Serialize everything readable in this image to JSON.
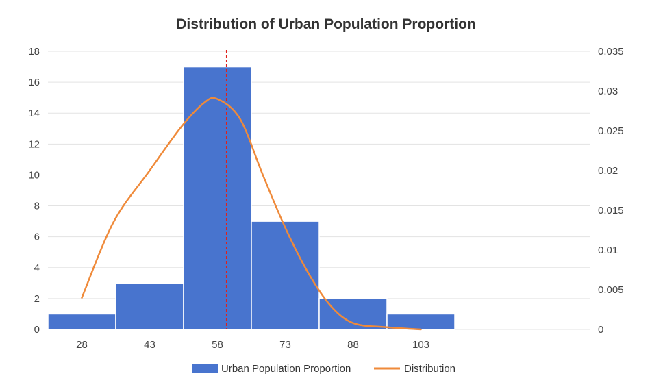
{
  "chart_data": {
    "type": "bar",
    "title": "Distribution of Urban Population Proportion",
    "categories": [
      "28",
      "43",
      "58",
      "73",
      "88",
      "103"
    ],
    "series": [
      {
        "name": "Urban Population Proportion",
        "type": "bar",
        "axis": "left",
        "values": [
          1,
          3,
          17,
          7,
          2,
          1
        ],
        "color": "#4874CE"
      },
      {
        "name": "Distribution",
        "type": "line",
        "axis": "right",
        "x": [
          28,
          35,
          43,
          50,
          55,
          58,
          63,
          68,
          73,
          78,
          83,
          88,
          95,
          103
        ],
        "values": [
          0.004,
          0.0135,
          0.02,
          0.0255,
          0.0285,
          0.029,
          0.0265,
          0.0195,
          0.0128,
          0.0072,
          0.003,
          0.0008,
          0.0003,
          0
        ],
        "color": "#EF8A3A"
      }
    ],
    "reference_line": {
      "x": 60,
      "color": "#E0201A",
      "style": "dashed"
    },
    "left_axis": {
      "ylim": [
        0,
        18
      ],
      "ticks": [
        "0",
        "2",
        "4",
        "6",
        "8",
        "10",
        "12",
        "14",
        "16",
        "18"
      ]
    },
    "right_axis": {
      "ylim": [
        0,
        0.035
      ],
      "ticks": [
        "0",
        "0.005",
        "0.01",
        "0.015",
        "0.02",
        "0.025",
        "0.03",
        "0.035"
      ]
    },
    "x_range": [
      20.5,
      140.5
    ],
    "grid": true,
    "legend_position": "bottom"
  }
}
